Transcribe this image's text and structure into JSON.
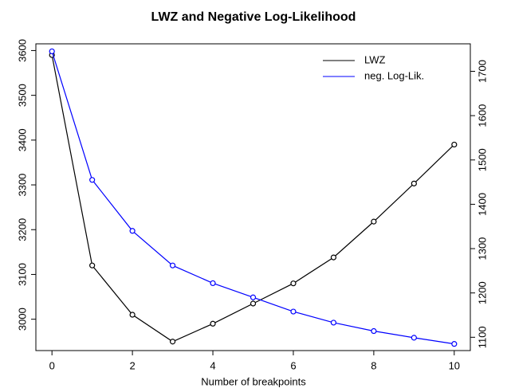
{
  "chart_data": {
    "type": "line",
    "title": "LWZ and Negative Log-Likelihood",
    "x_label": "Number of breakpoints",
    "x": [
      0,
      1,
      2,
      3,
      4,
      5,
      6,
      7,
      8,
      9,
      10
    ],
    "xlim": [
      -0.4,
      10.4
    ],
    "xticks": [
      0,
      2,
      4,
      6,
      8,
      10
    ],
    "ylim": [
      2930,
      3615
    ],
    "yticks": [
      3000,
      3100,
      3200,
      3300,
      3400,
      3500,
      3600
    ],
    "y2lim": [
      1070,
      1762
    ],
    "y2ticks": [
      1100,
      1200,
      1300,
      1400,
      1500,
      1600,
      1700
    ],
    "legend_position": "top-right",
    "series": [
      {
        "name": "LWZ",
        "color": "#000000",
        "values": [
          3590,
          3120,
          3010,
          2950,
          2990,
          3035,
          3080,
          3138,
          3218,
          3303,
          3390
        ]
      },
      {
        "name": "neg. Log-Lik.",
        "color": "#0000ff",
        "axis": "y2",
        "values": [
          1745,
          1455,
          1340,
          1262,
          1222,
          1190,
          1158,
          1133,
          1114,
          1099,
          1085
        ]
      }
    ]
  }
}
